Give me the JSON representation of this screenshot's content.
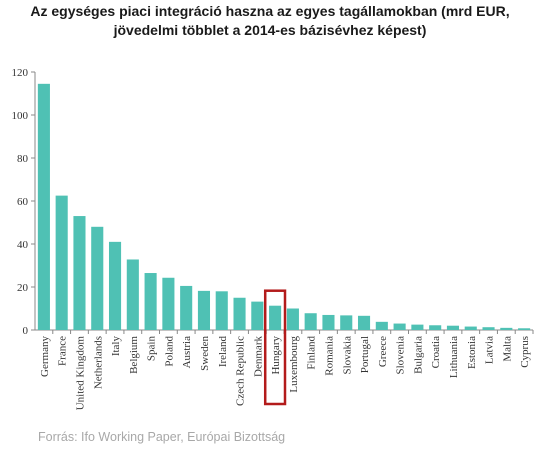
{
  "title_line1": "Az egységes piaci integráció haszna az egyes tagállamokban (mrd EUR,",
  "title_line2": "jövedelmi többlet a 2014-es bázisévhez képest)",
  "source": "Forrás: Ifo Working Paper, Európai Bizottság",
  "colors": {
    "bar": "#4fc1b4",
    "highlight": "#b31b1b",
    "axis": "#888888",
    "text": "#333333"
  },
  "chart_data": {
    "type": "bar",
    "title": "Az egységes piaci integráció haszna az egyes tagállamokban (mrd EUR, jövedelmi többlet a 2014-es bázisévhez képest)",
    "xlabel": "",
    "ylabel": "",
    "ylim": [
      0,
      120
    ],
    "yticks": [
      0,
      20,
      40,
      60,
      80,
      100,
      120
    ],
    "grid": false,
    "categories": [
      "Germany",
      "France",
      "United Kingdom",
      "Netherlands",
      "Italy",
      "Belgium",
      "Spain",
      "Poland",
      "Austria",
      "Sweden",
      "Ireland",
      "Czech Republic",
      "Denmark",
      "Hungary",
      "Luxembourg",
      "Finland",
      "Romania",
      "Slovakia",
      "Portugal",
      "Greece",
      "Slovenia",
      "Bulgaria",
      "Croatia",
      "Lithuania",
      "Estonia",
      "Latvia",
      "Malta",
      "Cyprus"
    ],
    "values": [
      114.5,
      62.5,
      53.0,
      48.0,
      41.0,
      32.8,
      26.5,
      24.3,
      20.5,
      18.2,
      18.0,
      15.0,
      13.2,
      11.3,
      10.0,
      7.8,
      7.0,
      6.8,
      6.6,
      3.8,
      3.0,
      2.5,
      2.2,
      2.0,
      1.6,
      1.3,
      1.0,
      0.8
    ],
    "highlighted": "Hungary"
  }
}
